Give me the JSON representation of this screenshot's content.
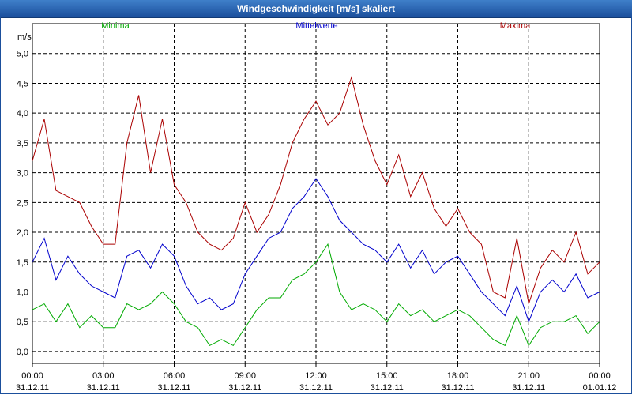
{
  "window": {
    "title": "Windgeschwindigkeit [m/s] skaliert"
  },
  "chart_data": {
    "type": "line",
    "title": "Windgeschwindigkeit [m/s] skaliert",
    "ylabel": "m/s",
    "xlabel": "",
    "ylim": [
      -0.2,
      5.5
    ],
    "yticks": [
      "0,0",
      "0,5",
      "1,0",
      "1,5",
      "2,0",
      "2,5",
      "3,0",
      "3,5",
      "4,0",
      "4,5",
      "5,0"
    ],
    "xticks": [
      {
        "time": "00:00",
        "date": "31.12.11"
      },
      {
        "time": "03:00",
        "date": "31.12.11"
      },
      {
        "time": "06:00",
        "date": "31.12.11"
      },
      {
        "time": "09:00",
        "date": "31.12.11"
      },
      {
        "time": "12:00",
        "date": "31.12.11"
      },
      {
        "time": "15:00",
        "date": "31.12.11"
      },
      {
        "time": "18:00",
        "date": "31.12.11"
      },
      {
        "time": "21:00",
        "date": "31.12.11"
      },
      {
        "time": "00:00",
        "date": "01.01.12"
      }
    ],
    "x_hours": [
      0,
      0.5,
      1,
      1.5,
      2,
      2.5,
      3,
      3.5,
      4,
      4.5,
      5,
      5.5,
      6,
      6.5,
      7,
      7.5,
      8,
      8.5,
      9,
      9.5,
      10,
      10.5,
      11,
      11.5,
      12,
      12.5,
      13,
      13.5,
      14,
      14.5,
      15,
      15.5,
      16,
      16.5,
      17,
      17.5,
      18,
      18.5,
      19,
      19.5,
      20,
      20.5,
      21,
      21.5,
      22,
      22.5,
      23,
      23.5,
      24
    ],
    "series": [
      {
        "name": "Minima",
        "color": "#00aa00",
        "values": [
          0.7,
          0.8,
          0.5,
          0.8,
          0.4,
          0.6,
          0.4,
          0.4,
          0.8,
          0.7,
          0.8,
          1.0,
          0.8,
          0.5,
          0.4,
          0.1,
          0.2,
          0.1,
          0.4,
          0.7,
          0.9,
          0.9,
          1.2,
          1.3,
          1.5,
          1.8,
          1.0,
          0.7,
          0.8,
          0.7,
          0.5,
          0.8,
          0.6,
          0.7,
          0.5,
          0.6,
          0.7,
          0.6,
          0.4,
          0.2,
          0.1,
          0.6,
          0.1,
          0.4,
          0.5,
          0.5,
          0.6,
          0.3,
          0.5
        ]
      },
      {
        "name": "Mittelwerte",
        "color": "#0000cc",
        "values": [
          1.5,
          1.9,
          1.2,
          1.6,
          1.3,
          1.1,
          1.0,
          0.9,
          1.6,
          1.7,
          1.4,
          1.8,
          1.6,
          1.1,
          0.8,
          0.9,
          0.7,
          0.8,
          1.3,
          1.6,
          1.9,
          2.0,
          2.4,
          2.6,
          2.9,
          2.6,
          2.2,
          2.0,
          1.8,
          1.7,
          1.5,
          1.8,
          1.4,
          1.7,
          1.3,
          1.5,
          1.6,
          1.3,
          1.0,
          0.8,
          0.6,
          1.1,
          0.5,
          1.0,
          1.2,
          1.0,
          1.3,
          0.9,
          1.0
        ]
      },
      {
        "name": "Maxima",
        "color": "#aa0000",
        "values": [
          3.2,
          3.9,
          2.7,
          2.6,
          2.5,
          2.1,
          1.8,
          1.8,
          3.5,
          4.3,
          3.0,
          3.9,
          2.8,
          2.5,
          2.0,
          1.8,
          1.7,
          1.9,
          2.5,
          2.0,
          2.3,
          2.8,
          3.5,
          3.9,
          4.2,
          3.8,
          4.0,
          4.6,
          3.8,
          3.2,
          2.8,
          3.3,
          2.6,
          3.0,
          2.4,
          2.1,
          2.4,
          2.0,
          1.8,
          1.0,
          0.9,
          1.9,
          0.8,
          1.4,
          1.7,
          1.5,
          2.0,
          1.3,
          1.5
        ]
      }
    ]
  }
}
